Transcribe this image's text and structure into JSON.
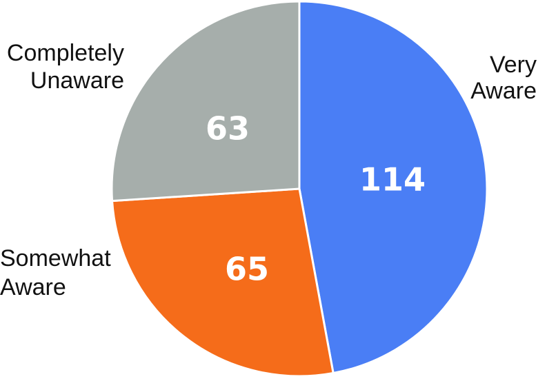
{
  "chart_data": {
    "type": "pie",
    "categories": [
      "Very Aware",
      "Somewhat Aware",
      "Completely Unaware"
    ],
    "values": [
      114,
      65,
      63
    ],
    "label_lines": [
      [
        "Very",
        "Aware"
      ],
      [
        "Somewhat",
        "Aware"
      ],
      [
        "Completely",
        "Unaware"
      ]
    ],
    "colors": [
      "#4a7ef5",
      "#f56c1a",
      "#a6aeab"
    ],
    "start_angle_deg": 0,
    "direction": "clockwise",
    "legend": "none"
  }
}
